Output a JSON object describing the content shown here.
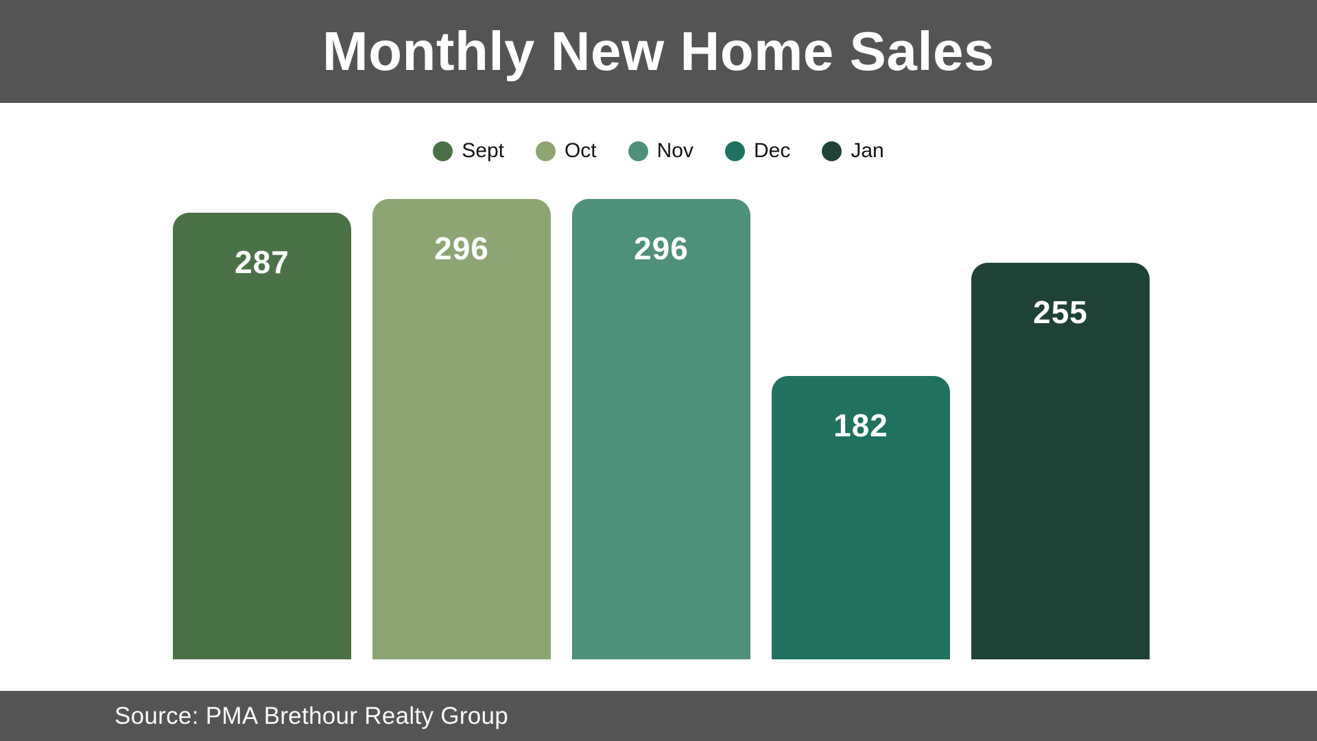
{
  "header": {
    "title": "Monthly New Home Sales",
    "bg_color": "#545454",
    "text_color": "#ffffff"
  },
  "footer": {
    "source": "Source: PMA Brethour Realty Group",
    "bg_color": "#545454",
    "text_color": "#fafafa"
  },
  "legend": {
    "position": "top-center",
    "items": [
      {
        "label": "Sept",
        "color": "#4B7147"
      },
      {
        "label": "Oct",
        "color": "#8CA572"
      },
      {
        "label": "Nov",
        "color": "#4F9078"
      },
      {
        "label": "Dec",
        "color": "#20715F"
      },
      {
        "label": "Jan",
        "color": "#1F4237"
      }
    ]
  },
  "chart_data": {
    "type": "bar",
    "title": "Monthly New Home Sales",
    "categories": [
      "Sept",
      "Oct",
      "Nov",
      "Dec",
      "Jan"
    ],
    "values": [
      287,
      296,
      296,
      182,
      255
    ],
    "bar_colors": [
      "#4B7147",
      "#8CA572",
      "#4F9078",
      "#20715F",
      "#1F4237"
    ],
    "data_labels": [
      287,
      296,
      296,
      182,
      255
    ],
    "data_label_color": "#ffffff",
    "xlabel": "",
    "ylabel": "",
    "ylim": [
      0,
      296
    ],
    "grid": false,
    "axes_shown": false,
    "legend_position": "top",
    "source": "Source: PMA Brethour Realty Group"
  }
}
